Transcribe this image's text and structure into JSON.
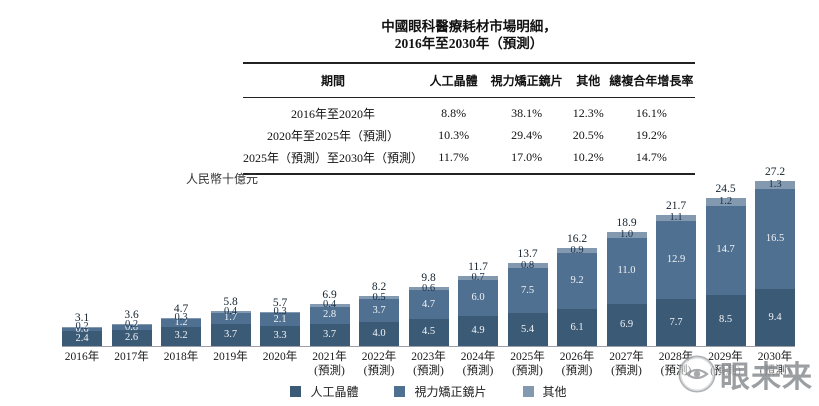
{
  "title": {
    "line1": "中國眼科醫療耗材市場明細，",
    "line2": "2016年至2030年（預測）"
  },
  "table": {
    "headers": [
      "期間",
      "人工晶體",
      "視力矯正鏡片",
      "其他",
      "總複合年增長率"
    ],
    "rows": [
      [
        "2016年至2020年",
        "8.8%",
        "38.1%",
        "12.3%",
        "16.1%"
      ],
      [
        "2020年至2025年（預測）",
        "10.3%",
        "29.4%",
        "20.5%",
        "19.2%"
      ],
      [
        "2025年（預測）至2030年（預測）",
        "11.7%",
        "17.0%",
        "10.2%",
        "14.7%"
      ]
    ]
  },
  "chart_data": {
    "type": "bar",
    "stacked": true,
    "title": "中國眼科醫療耗材市場明細，2016年至2030年（預測）",
    "ylabel": "人民幣十億元",
    "xlabel": "",
    "ylim": [
      0,
      28
    ],
    "grid": false,
    "legend_position": "bottom",
    "categories": [
      {
        "label": "2016年",
        "sublabel": ""
      },
      {
        "label": "2017年",
        "sublabel": ""
      },
      {
        "label": "2018年",
        "sublabel": ""
      },
      {
        "label": "2019年",
        "sublabel": ""
      },
      {
        "label": "2020年",
        "sublabel": ""
      },
      {
        "label": "2021年",
        "sublabel": "(預測)"
      },
      {
        "label": "2022年",
        "sublabel": "(預測)"
      },
      {
        "label": "2023年",
        "sublabel": "(預測)"
      },
      {
        "label": "2024年",
        "sublabel": "(預測)"
      },
      {
        "label": "2025年",
        "sublabel": "(預測)"
      },
      {
        "label": "2026年",
        "sublabel": "(預測)"
      },
      {
        "label": "2027年",
        "sublabel": "(預測)"
      },
      {
        "label": "2028年",
        "sublabel": "(預測)"
      },
      {
        "label": "2029年",
        "sublabel": "(預測)"
      },
      {
        "label": "2030年",
        "sublabel": "(預測)"
      }
    ],
    "series": [
      {
        "name": "人工晶體",
        "color": "#3B5A76",
        "values": [
          2.4,
          2.6,
          3.2,
          3.7,
          3.3,
          3.7,
          4.0,
          4.5,
          4.9,
          5.4,
          6.1,
          6.9,
          7.7,
          8.5,
          9.4
        ]
      },
      {
        "name": "視力矯正鏡片",
        "color": "#4F7090",
        "values": [
          0.6,
          0.8,
          1.2,
          1.7,
          2.1,
          2.8,
          3.7,
          4.7,
          6.0,
          7.5,
          9.2,
          11.0,
          12.9,
          14.7,
          16.5
        ]
      },
      {
        "name": "其他",
        "color": "#8299AF",
        "values": [
          0.2,
          0.2,
          0.3,
          0.4,
          0.3,
          0.4,
          0.5,
          0.6,
          0.7,
          0.8,
          0.9,
          1.0,
          1.1,
          1.2,
          1.3
        ]
      }
    ],
    "totals": [
      3.1,
      3.6,
      4.7,
      5.8,
      5.7,
      6.9,
      8.2,
      9.8,
      11.7,
      13.7,
      16.2,
      18.9,
      21.7,
      24.5,
      27.2
    ]
  },
  "watermark": {
    "text": "眼未来"
  }
}
